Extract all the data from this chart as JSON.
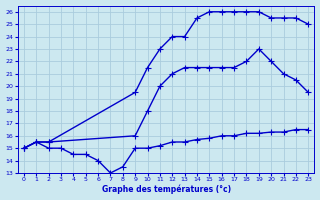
{
  "title": "Graphe des températures (°c)",
  "bg_color": "#cce8f0",
  "grid_color": "#aaccdd",
  "line_color": "#0000cc",
  "xlim": [
    -0.5,
    23.5
  ],
  "ylim": [
    13,
    26.5
  ],
  "xticks": [
    0,
    1,
    2,
    3,
    4,
    5,
    6,
    7,
    8,
    9,
    10,
    11,
    12,
    13,
    14,
    15,
    16,
    17,
    18,
    19,
    20,
    21,
    22,
    23
  ],
  "yticks": [
    13,
    14,
    15,
    16,
    17,
    18,
    19,
    20,
    21,
    22,
    23,
    24,
    25,
    26
  ],
  "line1_x": [
    0,
    1,
    2,
    9,
    10,
    11,
    12,
    13,
    14,
    15,
    16,
    17,
    18,
    19,
    20,
    21,
    22,
    23
  ],
  "line1_y": [
    15,
    15.5,
    15.5,
    19.5,
    21.5,
    23,
    24,
    24,
    25.5,
    26,
    26,
    26,
    26,
    26,
    25.5,
    25.5,
    25.5,
    25
  ],
  "line2_x": [
    0,
    1,
    2,
    9,
    10,
    11,
    12,
    13,
    14,
    15,
    16,
    17,
    18,
    19,
    20,
    21,
    22,
    23
  ],
  "line2_y": [
    15,
    15.5,
    15.5,
    16,
    18,
    20,
    21,
    21.5,
    21.5,
    21.5,
    21.5,
    21.5,
    22,
    23,
    22,
    21,
    20.5,
    19.5
  ],
  "line3_x": [
    0,
    1,
    2,
    3,
    4,
    5,
    6,
    7,
    8,
    9,
    10,
    11,
    12,
    13,
    14,
    15,
    16,
    17,
    18,
    19,
    20,
    21,
    22,
    23
  ],
  "line3_y": [
    15,
    15.5,
    15,
    15,
    14.5,
    14.5,
    14,
    13,
    13.5,
    15,
    15,
    15.2,
    15.5,
    15.5,
    15.7,
    15.8,
    16,
    16,
    16.2,
    16.2,
    16.3,
    16.3,
    16.5,
    16.5
  ]
}
